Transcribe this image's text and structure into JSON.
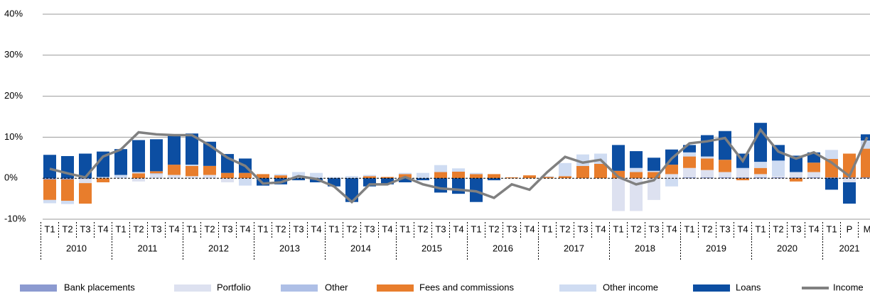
{
  "chart_data": {
    "type": "bar",
    "categories": [
      "T1",
      "T2",
      "T3",
      "T4",
      "T1",
      "T2",
      "T3",
      "T4",
      "T1",
      "T2",
      "T3",
      "T4",
      "T1",
      "T2",
      "T3",
      "T4",
      "T1",
      "T2",
      "T3",
      "T4",
      "T1",
      "T2",
      "T3",
      "T4",
      "T1",
      "T2",
      "T3",
      "T4",
      "T1",
      "T2",
      "T3",
      "T4",
      "T1",
      "T2",
      "T3",
      "T4",
      "T1",
      "T2",
      "T3",
      "T4",
      "T1",
      "T2",
      "T3",
      "T4",
      "T1",
      "P",
      "M"
    ],
    "years": [
      "2010",
      "2011",
      "2012",
      "2013",
      "2014",
      "2015",
      "2016",
      "2017",
      "2018",
      "2019",
      "2020",
      "2021"
    ],
    "series": [
      {
        "name": "Bank placements",
        "color": "#8c9ad0",
        "values": [
          -0.3,
          -0.3,
          -0.2,
          0,
          0,
          0,
          0,
          0,
          0,
          0,
          0,
          0,
          0,
          0,
          0,
          0,
          0,
          0,
          0,
          0,
          0,
          0,
          0,
          0,
          0,
          0,
          0,
          0,
          0,
          0,
          0,
          0,
          0,
          0,
          0,
          0,
          0.2,
          0.2,
          0.2,
          0.2,
          0.2,
          0.2,
          0.2,
          0.2,
          0.2,
          0.2,
          0.2
        ]
      },
      {
        "name": "Portfolio",
        "color": "#dde1f0",
        "values": [
          0,
          0,
          -1,
          0,
          0,
          -0.8,
          1,
          0.8,
          0.5,
          0.8,
          -1,
          0,
          0,
          0,
          0,
          0,
          0,
          0,
          0,
          0,
          0,
          0,
          0,
          0,
          0,
          0,
          0,
          0,
          0,
          0,
          0,
          0,
          -8,
          -8,
          -5.3,
          1,
          2.3,
          1.8,
          1.3,
          1.8,
          0.8,
          0.3,
          1.3,
          1.3,
          0,
          -1,
          0
        ]
      },
      {
        "name": "Other",
        "color": "#aebfe6",
        "values": [
          0,
          0,
          0,
          0,
          0,
          0,
          0.2,
          0,
          0,
          0,
          0,
          0,
          0,
          0,
          0,
          0,
          0,
          0,
          0,
          0,
          0,
          0,
          0,
          0,
          0,
          0,
          0,
          0,
          0,
          0,
          0,
          0,
          0,
          0,
          0,
          0,
          0,
          0,
          0,
          0,
          0,
          0,
          0,
          0,
          0,
          0,
          0
        ]
      },
      {
        "name": "Fees and commissions",
        "color": "#e87d2c",
        "values": [
          -5,
          -5.2,
          -5,
          -1,
          0,
          1.2,
          0.5,
          2.5,
          2.5,
          2.2,
          1.3,
          1.3,
          1,
          0.7,
          0,
          0,
          0,
          0,
          0.5,
          0.3,
          1,
          0,
          1.5,
          1.6,
          1,
          1,
          0.2,
          0.7,
          0.3,
          0.5,
          3,
          3.5,
          1.8,
          1.5,
          1.5,
          2.3,
          2.8,
          2.8,
          3,
          -0.5,
          1.5,
          0,
          -0.8,
          2.3,
          4.5,
          5.8,
          7
        ]
      },
      {
        "name": "Other income",
        "color": "#cfdcf2",
        "values": [
          -0.8,
          -0.8,
          0,
          0.3,
          0.8,
          0.3,
          0,
          0,
          0.3,
          0,
          0,
          -1.8,
          0,
          0.3,
          1.5,
          1.3,
          0.3,
          0.5,
          0.3,
          0,
          0.3,
          1.3,
          1.7,
          0.8,
          0.3,
          0,
          0,
          0,
          0.2,
          3.2,
          2.8,
          2.5,
          0,
          1,
          0.3,
          -2,
          1,
          0.5,
          0,
          0.5,
          1.5,
          3.8,
          0,
          0,
          2.2,
          0,
          2
        ]
      },
      {
        "name": "Loans",
        "color": "#0c4ea2",
        "values": [
          5.7,
          5.4,
          6,
          6.2,
          6.3,
          7.8,
          7.8,
          7.2,
          7.6,
          5.9,
          4.6,
          3.5,
          -1.8,
          -1.5,
          -0.5,
          -1,
          -2,
          -5.8,
          -2,
          -1.5,
          -1,
          -0.5,
          -3.5,
          -3.8,
          -5.8,
          -0.5,
          0,
          0,
          0,
          0,
          0,
          0,
          6.3,
          4.1,
          3.2,
          3.7,
          1.8,
          5.2,
          7,
          3.5,
          9.5,
          3.8,
          4,
          2.5,
          -2.8,
          -5.2,
          1.5
        ]
      },
      {
        "name": "Income",
        "color": "#808080",
        "type": "line",
        "values": [
          2.3,
          1.2,
          0.2,
          5.3,
          7,
          11.2,
          10.7,
          10.5,
          10.5,
          8,
          5,
          3,
          -1.3,
          -1,
          0.5,
          -0.2,
          -2,
          -5.8,
          -1.5,
          -1.5,
          0.3,
          -1.5,
          -2.5,
          -2.8,
          -3.2,
          -4.8,
          -1.5,
          -2.8,
          1.5,
          5.2,
          3.8,
          4.5,
          0.3,
          -1.5,
          -0.5,
          4.8,
          8.5,
          9,
          9.8,
          4.2,
          11.8,
          6.5,
          4.8,
          6.3,
          3.8,
          0.5,
          10
        ]
      }
    ],
    "ylim": [
      -10,
      40
    ],
    "yticks": [
      {
        "value": -10,
        "label": "-10%"
      },
      {
        "value": 0,
        "label": "0%"
      },
      {
        "value": 10,
        "label": "10%"
      },
      {
        "value": 20,
        "label": "20%"
      },
      {
        "value": 30,
        "label": "30%"
      },
      {
        "value": 40,
        "label": "40%"
      }
    ],
    "grid": true,
    "legend": "bottom"
  }
}
